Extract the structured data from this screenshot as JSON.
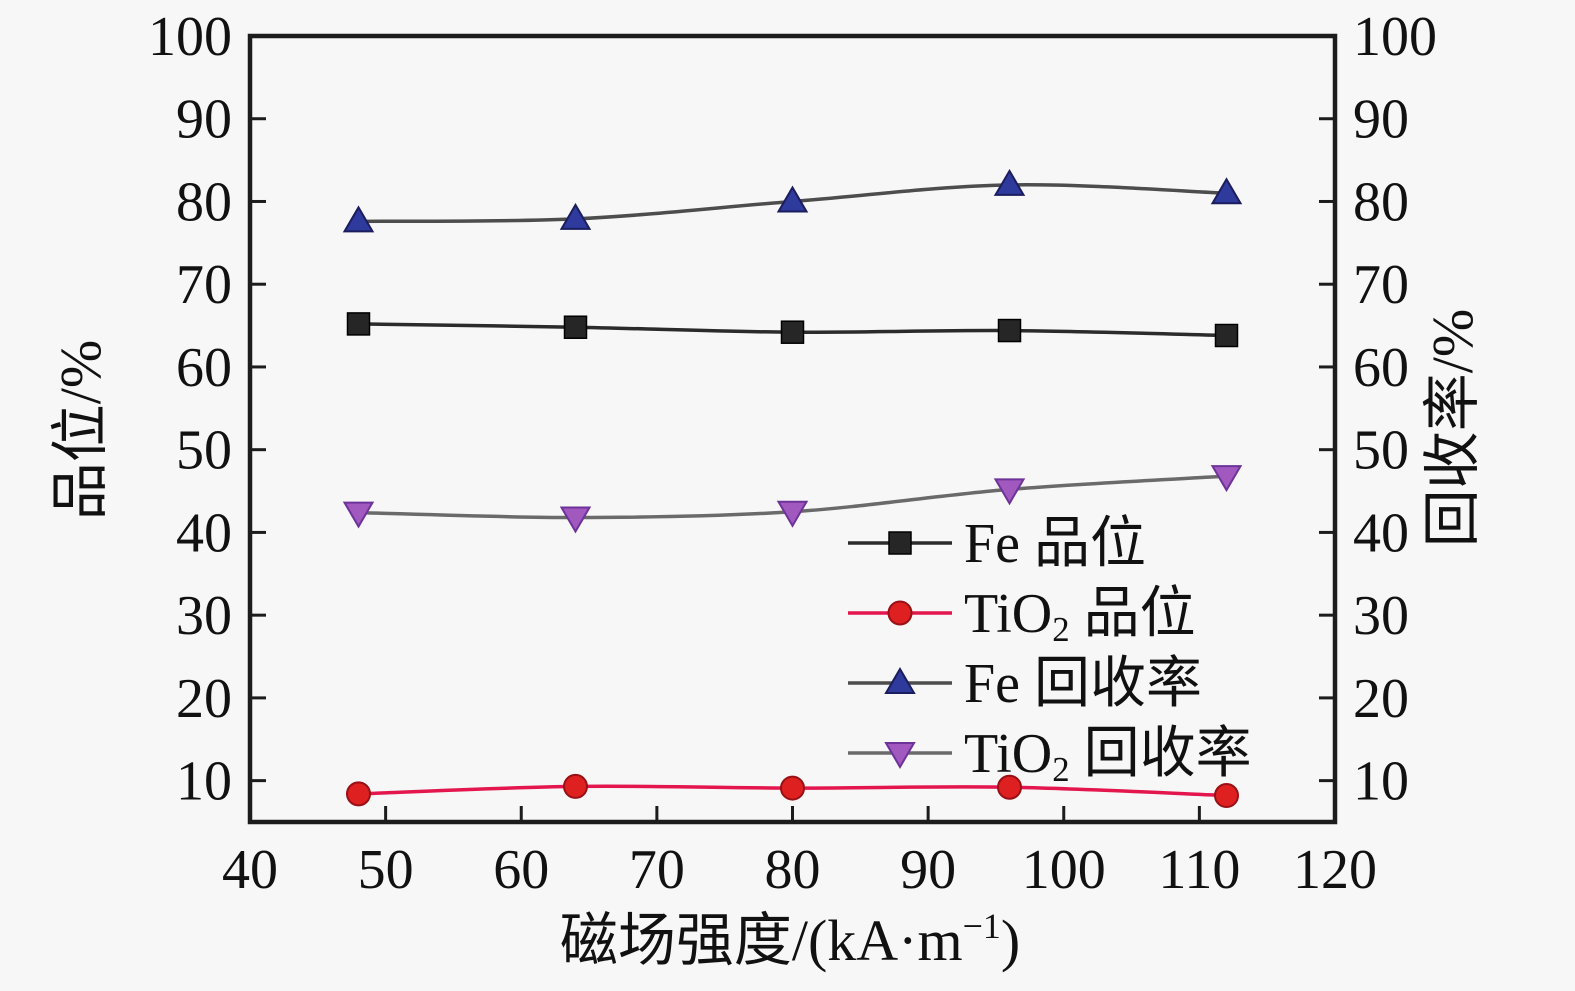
{
  "figure": {
    "background": "#f7f7f7",
    "frame_color": "#1c1c1c",
    "text_color": "#111111"
  },
  "chart_data": {
    "type": "line",
    "x": [
      48,
      64,
      80,
      96,
      112
    ],
    "series": [
      {
        "key": "fe-grade",
        "name": "Fe 品位",
        "axis": "left",
        "marker": "square",
        "marker_color": "#262626",
        "marker_edge": "#000000",
        "line_color": "#2b2b2b",
        "values": [
          65.2,
          64.8,
          64.2,
          64.4,
          63.8
        ]
      },
      {
        "key": "tio2-grade",
        "name": "TiO₂ 品位",
        "axis": "left",
        "marker": "circle",
        "marker_color": "#df2020",
        "marker_edge": "#991016",
        "line_color": "#e3164e",
        "values": [
          8.4,
          9.3,
          9.1,
          9.2,
          8.2
        ]
      },
      {
        "key": "fe-recovery",
        "name": "Fe 回收率",
        "axis": "right",
        "marker": "triangle-up",
        "marker_color": "#2e3a9c",
        "marker_edge": "#1b1d5e",
        "line_color": "#4d4d4d",
        "values": [
          77.6,
          77.9,
          80.0,
          82.0,
          81.0
        ]
      },
      {
        "key": "tio2-recovery",
        "name": "TiO₂ 回收率",
        "axis": "right",
        "marker": "triangle-down",
        "marker_color": "#a159c0",
        "marker_edge": "#6e3399",
        "line_color": "#6a6a6a",
        "values": [
          42.4,
          41.8,
          42.5,
          45.2,
          46.8
        ]
      }
    ],
    "xlabel": "磁场强度/(kA·m⁻¹)",
    "xlabel_segments": [
      {
        "t": "磁场强度/(kA·m"
      },
      {
        "t": "−1",
        "sup": true
      },
      {
        "t": ")"
      }
    ],
    "ylabel_left": "品位/%",
    "ylabel_right": "回收率/%",
    "xlim": [
      40,
      120
    ],
    "ylim": [
      5,
      100
    ],
    "x_ticks": [
      40,
      50,
      60,
      70,
      80,
      90,
      100,
      110,
      120
    ],
    "y_ticks": [
      10,
      20,
      30,
      40,
      50,
      60,
      70,
      80,
      90,
      100
    ],
    "grid": false,
    "legend_position": "inside lower-right",
    "smooth_lines": true
  },
  "legend": {
    "items": [
      {
        "series": 0,
        "label": "Fe 品位",
        "segments": [
          {
            "t": "Fe 品位"
          }
        ]
      },
      {
        "series": 1,
        "label": "TiO₂ 品位",
        "segments": [
          {
            "t": "TiO"
          },
          {
            "t": "2",
            "sub": true
          },
          {
            "t": " 品位"
          }
        ]
      },
      {
        "series": 2,
        "label": "Fe 回收率",
        "segments": [
          {
            "t": "Fe 回收率"
          }
        ]
      },
      {
        "series": 3,
        "label": "TiO₂ 回收率",
        "segments": [
          {
            "t": "TiO"
          },
          {
            "t": "2",
            "sub": true
          },
          {
            "t": " 回收率"
          }
        ]
      }
    ]
  }
}
